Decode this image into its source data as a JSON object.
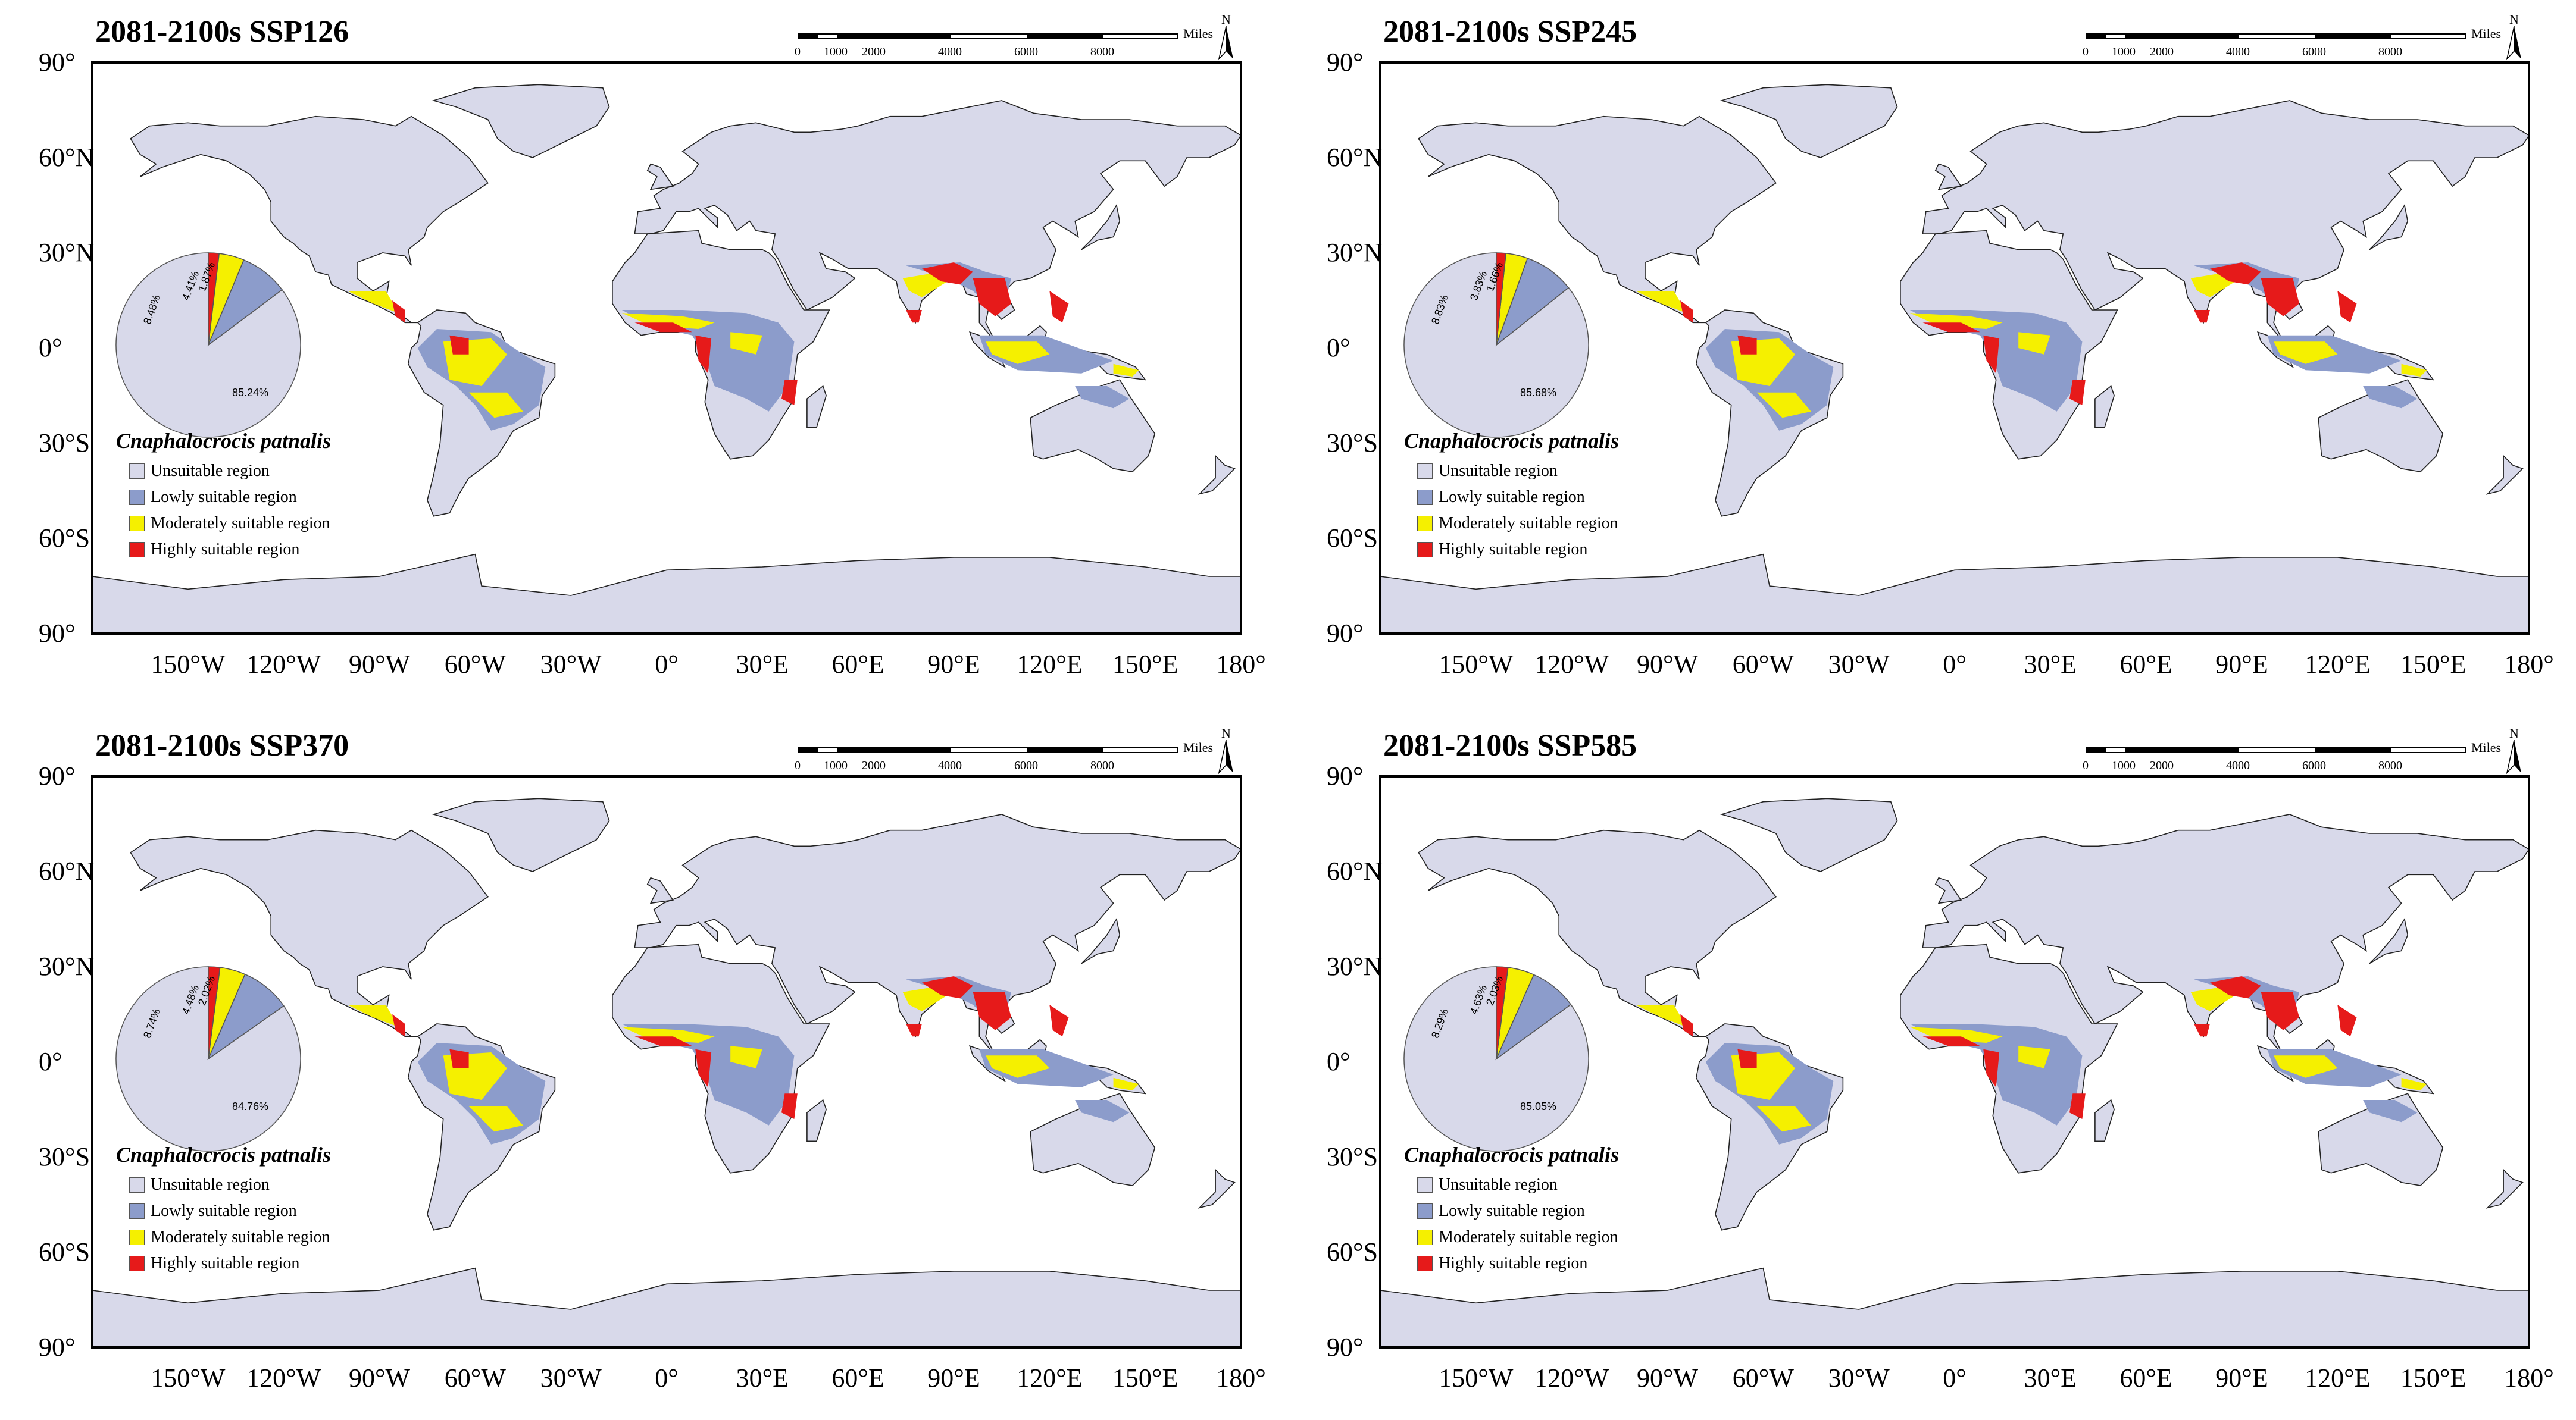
{
  "figure": {
    "legend_title": "Cnaphalocrocis patnalis",
    "legend_items": [
      {
        "label": "Unsuitable region",
        "color": "#d8d9ea"
      },
      {
        "label": "Lowly suitable region",
        "color": "#8c9ccb"
      },
      {
        "label": "Moderately suitable region",
        "color": "#f5f000"
      },
      {
        "label": "Highly suitable region",
        "color": "#e61a1a"
      }
    ],
    "lat_labels": [
      "90°",
      "60°N",
      "30°N",
      "0°",
      "30°S",
      "60°S",
      "90°"
    ],
    "lon_labels": [
      "150°W",
      "120°W",
      "90°W",
      "60°W",
      "30°W",
      "0°",
      "30°E",
      "60°E",
      "90°E",
      "120°E",
      "150°E",
      "180°"
    ],
    "scale_ticks": [
      "0",
      "1000",
      "2000",
      "4000",
      "6000",
      "8000"
    ],
    "scale_unit": "Miles",
    "north_label": "N",
    "ocean_color": "#ffffff",
    "land_border_color": "#222222"
  },
  "panels": [
    {
      "title": "2081-2100s SSP126",
      "pie": {
        "unsuitable": "85.24%",
        "lowly": "8.48%",
        "moderately": "4.41%",
        "highly": "1.87%",
        "values": [
          85.24,
          8.48,
          4.41,
          1.87
        ]
      }
    },
    {
      "title": "2081-2100s SSP245",
      "pie": {
        "unsuitable": "85.68%",
        "lowly": "8.83%",
        "moderately": "3.83%",
        "highly": "1.66%",
        "values": [
          85.68,
          8.83,
          3.83,
          1.66
        ]
      }
    },
    {
      "title": "2081-2100s SSP370",
      "pie": {
        "unsuitable": "84.76%",
        "lowly": "8.74%",
        "moderately": "4.48%",
        "highly": "2.02%",
        "values": [
          84.76,
          8.74,
          4.48,
          2.02
        ]
      }
    },
    {
      "title": "2081-2100s SSP585",
      "pie": {
        "unsuitable": "85.05%",
        "lowly": "8.29%",
        "moderately": "4.63%",
        "highly": "2.03%",
        "values": [
          85.05,
          8.29,
          4.63,
          2.03
        ]
      }
    }
  ]
}
